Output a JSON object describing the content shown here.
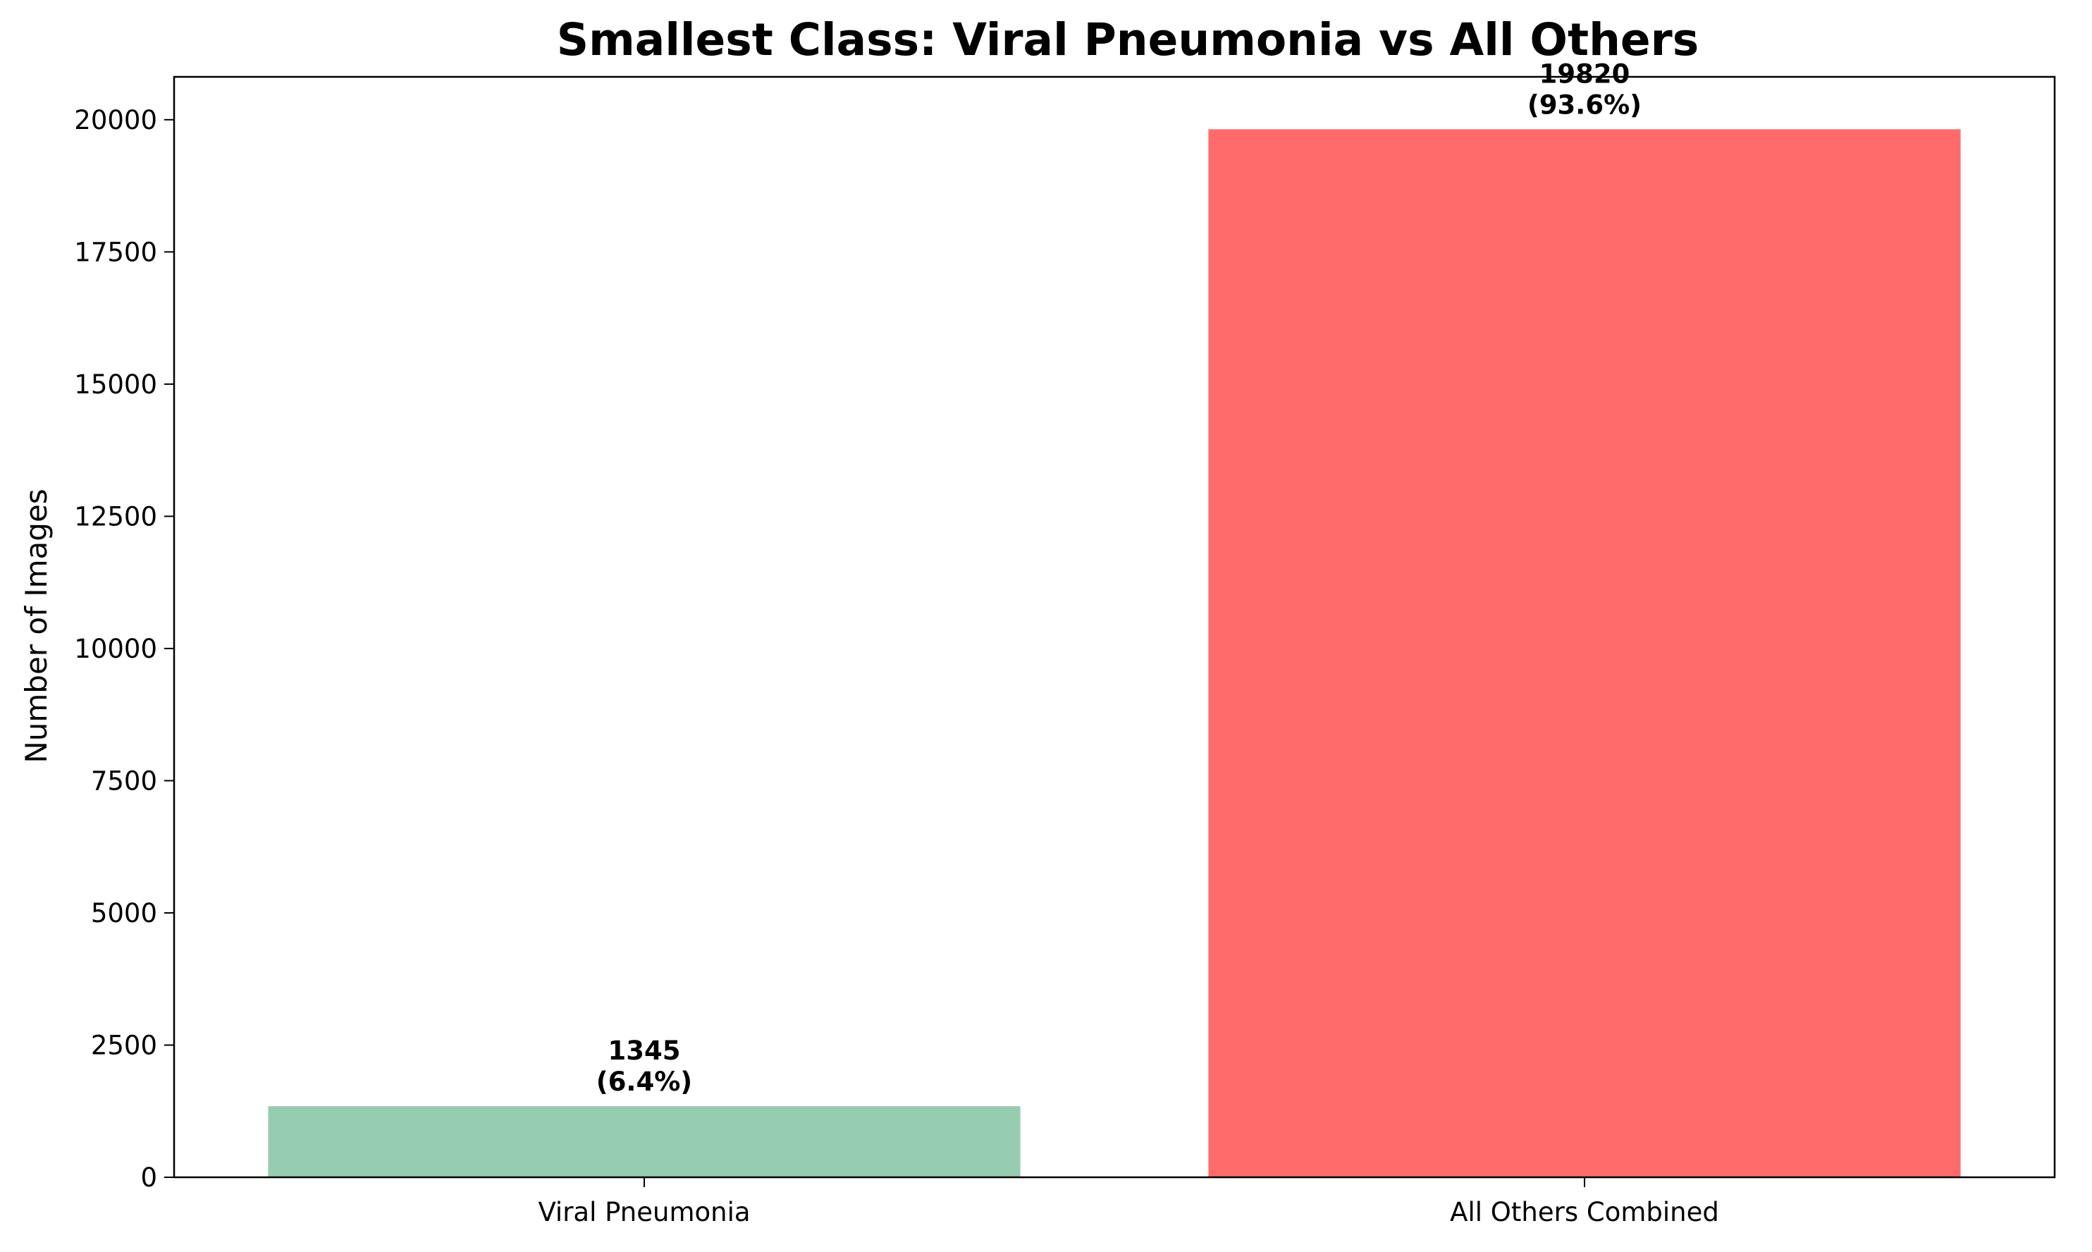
{
  "chart_data": {
    "type": "bar",
    "title": "Smallest Class: Viral Pneumonia vs All Others",
    "xlabel": "",
    "ylabel": "Number of Images",
    "categories": [
      "Viral Pneumonia",
      "All Others Combined"
    ],
    "values": [
      1345,
      19820
    ],
    "data_labels": [
      [
        "1345",
        "(6.4%)"
      ],
      [
        "19820",
        "(93.6%)"
      ]
    ],
    "colors": [
      "#96CDB1",
      "#FF6B6B"
    ],
    "ylim": [
      0,
      20811
    ],
    "yticks": [
      0,
      2500,
      5000,
      7500,
      10000,
      12500,
      15000,
      17500,
      20000
    ],
    "grid": false,
    "legend": "none"
  }
}
